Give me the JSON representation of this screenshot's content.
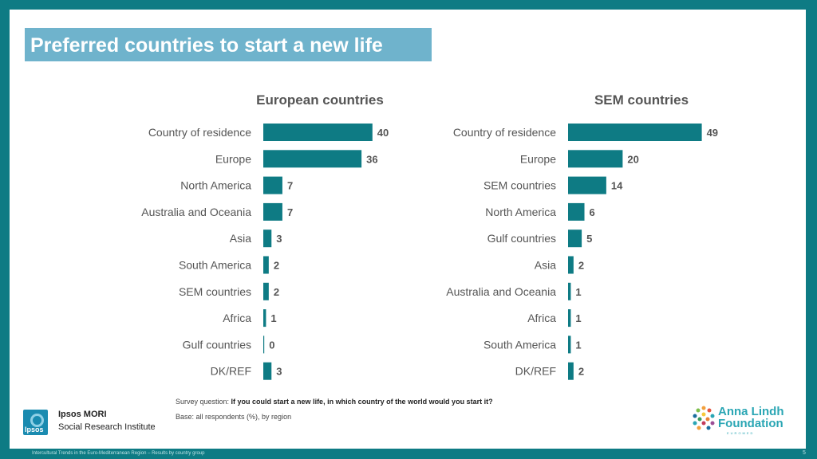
{
  "title": "Preferred countries to start a new life",
  "survey_prefix": "Survey question: ",
  "survey_question": "If you could start a new life, in which country of the world would you start it?",
  "base": "Base: all respondents (%), by region",
  "ipsos": {
    "logo_text": "Ipsos",
    "name": "Ipsos MORI",
    "subtitle": "Social Research Institute"
  },
  "alf": {
    "line1": "Anna Lindh",
    "line2": "Foundation",
    "tag": "EUROMED"
  },
  "footer": "Intercultural Trends in the Euro-Mediterranean Region – Results by country group",
  "page_number": "5",
  "colors": {
    "bar": "#0e7b84",
    "frame": "#0e7b84",
    "title_bg": "#6fb3cc",
    "label": "#555555"
  },
  "chart_data": [
    {
      "type": "bar",
      "orientation": "horizontal",
      "title": "European countries",
      "categories": [
        "Country of residence",
        "Europe",
        "North America",
        "Australia and Oceania",
        "Asia",
        "South America",
        "SEM countries",
        "Africa",
        "Gulf countries",
        "DK/REF"
      ],
      "values": [
        40,
        36,
        7,
        7,
        3,
        2,
        2,
        1,
        0,
        3
      ],
      "xlim": [
        0,
        49
      ],
      "grid": false,
      "data_labels": true
    },
    {
      "type": "bar",
      "orientation": "horizontal",
      "title": "SEM countries",
      "categories": [
        "Country of residence",
        "Europe",
        "SEM countries",
        "North America",
        "Gulf countries",
        "Asia",
        "Australia and Oceania",
        "Africa",
        "South America",
        "DK/REF"
      ],
      "values": [
        49,
        20,
        14,
        6,
        5,
        2,
        1,
        1,
        1,
        2
      ],
      "xlim": [
        0,
        49
      ],
      "grid": false,
      "data_labels": true
    }
  ]
}
